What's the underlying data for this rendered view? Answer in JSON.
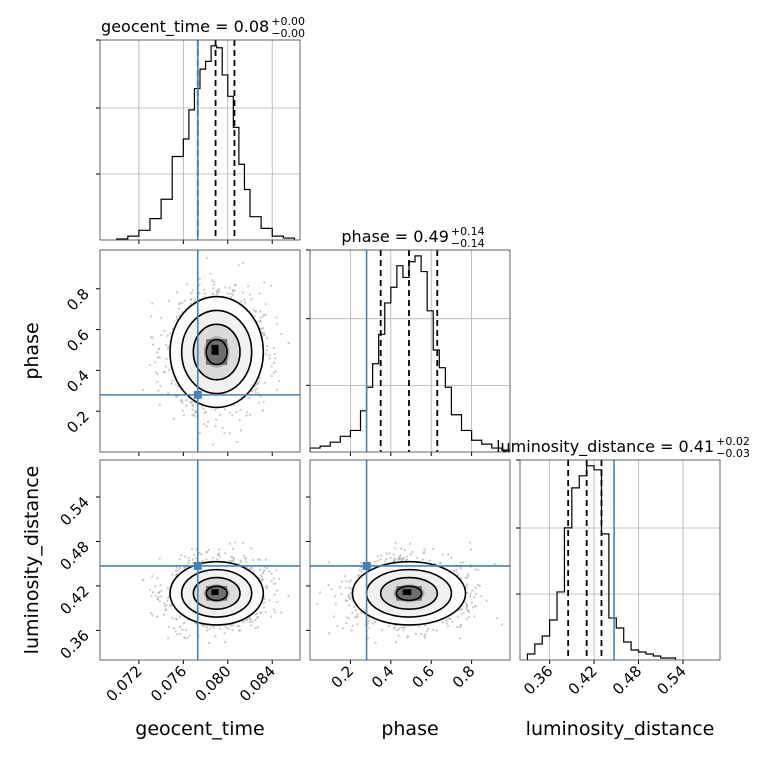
{
  "chart_data": {
    "type": "corner",
    "parameters": [
      "geocent_time",
      "phase",
      "luminosity_distance"
    ],
    "truths": {
      "geocent_time": 0.0773,
      "phase": 0.28,
      "luminosity_distance": 0.447
    },
    "truth_color": "#4682b4",
    "ranges": {
      "geocent_time": [
        0.0685,
        0.0865
      ],
      "phase": [
        0.0,
        0.99
      ],
      "luminosity_distance": [
        0.32,
        0.59
      ]
    },
    "ticks": {
      "geocent_time": [
        0.072,
        0.076,
        0.08,
        0.084
      ],
      "phase": [
        0.2,
        0.4,
        0.6,
        0.8
      ],
      "luminosity_distance": [
        0.36,
        0.42,
        0.48,
        0.54
      ]
    },
    "tick_labels": {
      "geocent_time": [
        "0.072",
        "0.076",
        "0.080",
        "0.084"
      ],
      "phase": [
        "0.2",
        "0.4",
        "0.6",
        "0.8"
      ],
      "luminosity_distance": [
        "0.36",
        "0.42",
        "0.48",
        "0.54"
      ]
    },
    "xlabels": [
      "geocent_time",
      "phase",
      "luminosity_distance"
    ],
    "ylabels": [
      "",
      "phase",
      "luminosity_distance"
    ],
    "titles": [
      {
        "name": "geocent_time = 0.08",
        "sup": "+0.00",
        "sub": "−0.00"
      },
      {
        "name": "phase = 0.49",
        "sup": "+0.14",
        "sub": "−0.14"
      },
      {
        "name": "luminosity_distance = 0.41",
        "sup": "+0.02",
        "sub": "−0.03"
      }
    ],
    "quantiles": {
      "geocent_time": [
        0.0773,
        0.0789,
        0.0806
      ],
      "phase": [
        0.35,
        0.49,
        0.63
      ],
      "luminosity_distance": [
        0.385,
        0.41,
        0.43
      ]
    },
    "histograms": {
      "geocent_time": {
        "edges": [
          0.07,
          0.071,
          0.072,
          0.073,
          0.074,
          0.075,
          0.076,
          0.0765,
          0.077,
          0.0775,
          0.078,
          0.0785,
          0.079,
          0.0795,
          0.08,
          0.0805,
          0.081,
          0.0815,
          0.082,
          0.083,
          0.084,
          0.085,
          0.086
        ],
        "counts": [
          0.5,
          2,
          5,
          11,
          21,
          43,
          52,
          67,
          78,
          88,
          92,
          100,
          99,
          85,
          74,
          58,
          39,
          26,
          12,
          6,
          2,
          1
        ]
      },
      "phase": {
        "edges": [
          0.0,
          0.05,
          0.1,
          0.15,
          0.2,
          0.25,
          0.28,
          0.31,
          0.34,
          0.37,
          0.4,
          0.43,
          0.46,
          0.49,
          0.52,
          0.55,
          0.58,
          0.61,
          0.64,
          0.67,
          0.7,
          0.75,
          0.8,
          0.85,
          0.9,
          0.95,
          0.99
        ],
        "counts": [
          2,
          3,
          5,
          8,
          11,
          21,
          33,
          45,
          60,
          76,
          84,
          95,
          89,
          97,
          100,
          92,
          72,
          52,
          43,
          33,
          19,
          11,
          6,
          4,
          2,
          1
        ]
      },
      "luminosity_distance": {
        "edges": [
          0.33,
          0.34,
          0.35,
          0.36,
          0.37,
          0.38,
          0.39,
          0.4,
          0.41,
          0.42,
          0.43,
          0.44,
          0.45,
          0.46,
          0.47,
          0.48,
          0.49,
          0.5,
          0.51,
          0.53
        ],
        "counts": [
          3,
          8,
          12,
          20,
          34,
          66,
          86,
          92,
          97,
          95,
          63,
          21,
          16,
          9,
          5,
          4,
          3,
          2,
          1
        ]
      }
    },
    "scatter_seed": 7,
    "scatter_count": 1600,
    "distribution": {
      "geocent_time": {
        "mean": 0.079,
        "sd": 0.0021
      },
      "phase": {
        "mean": 0.49,
        "sd": 0.14
      },
      "luminosity_distance": {
        "mean": 0.41,
        "sd": 0.022
      }
    },
    "grid": true
  }
}
